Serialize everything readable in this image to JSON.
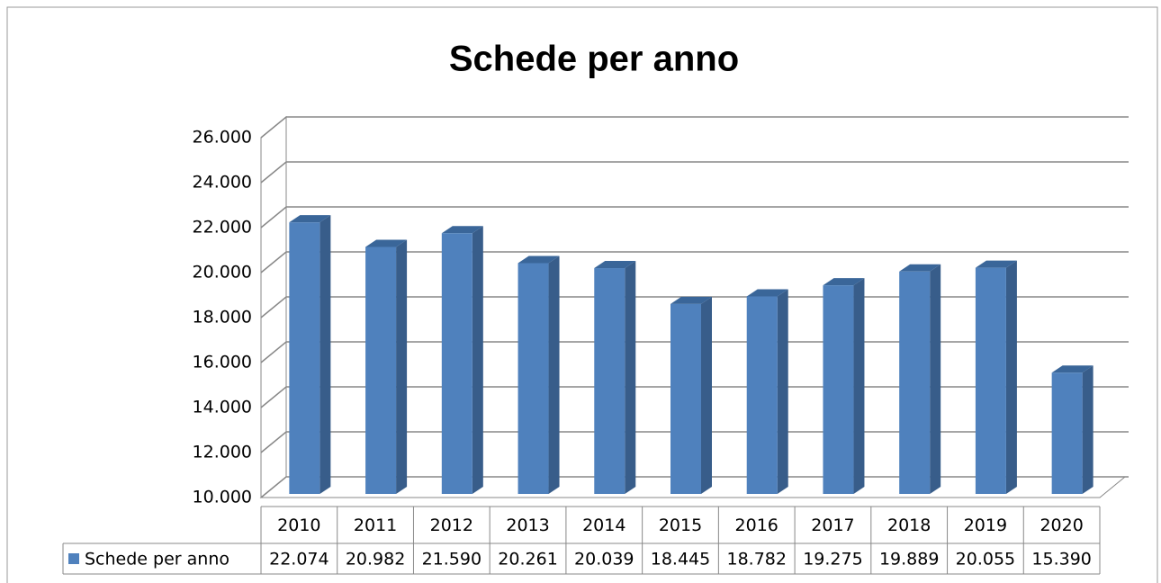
{
  "chart_data": {
    "type": "bar3d",
    "title": "Schede per anno",
    "categories": [
      "2010",
      "2011",
      "2012",
      "2013",
      "2014",
      "2015",
      "2016",
      "2017",
      "2018",
      "2019",
      "2020"
    ],
    "series": [
      {
        "name": "Schede per anno",
        "color": "#4f81bd",
        "values": [
          22074,
          20982,
          21590,
          20261,
          20039,
          18445,
          18782,
          19275,
          19889,
          20055,
          15390
        ],
        "value_labels": [
          "22.074",
          "20.982",
          "21.590",
          "20.261",
          "20.039",
          "18.445",
          "18.782",
          "19.275",
          "19.889",
          "20.055",
          "15.390"
        ]
      }
    ],
    "ylim": [
      10000,
      26000
    ],
    "yticks": [
      {
        "value": 10000,
        "label": "10.000"
      },
      {
        "value": 12000,
        "label": "12.000"
      },
      {
        "value": 14000,
        "label": "14.000"
      },
      {
        "value": 16000,
        "label": "16.000"
      },
      {
        "value": 18000,
        "label": "18.000"
      },
      {
        "value": 20000,
        "label": "20.000"
      },
      {
        "value": 22000,
        "label": "22.000"
      },
      {
        "value": 24000,
        "label": "24.000"
      },
      {
        "value": 26000,
        "label": "26.000"
      }
    ],
    "grid": true,
    "data_table": true
  }
}
